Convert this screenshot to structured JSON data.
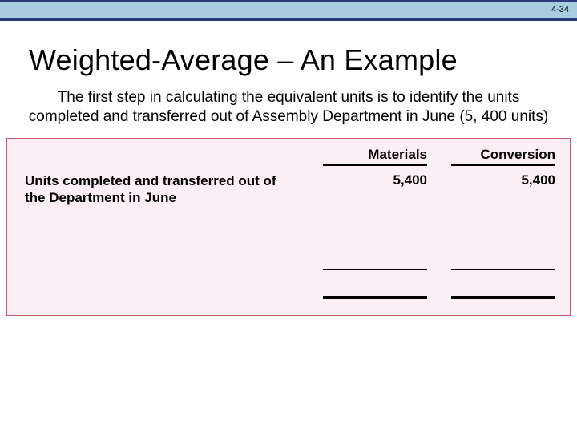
{
  "header": {
    "page_number": "4-34",
    "bar_color": "#a8cde0",
    "border_color": "#2a3a7a"
  },
  "title": "Weighted-Average – An Example",
  "intro": "The first step in calculating the equivalent units is to identify the units completed and transferred out of Assembly Department in June (5, 400 units)",
  "table": {
    "type": "table",
    "background_color": "#fbeef4",
    "border_color": "#c45a6a",
    "columns": [
      "Materials",
      "Conversion"
    ],
    "row_label": "Units completed and transferred out of the Department in June",
    "values": [
      "5,400",
      "5,400"
    ],
    "font_weight": 700,
    "label_fontsize": 17,
    "value_fontsize": 17
  }
}
